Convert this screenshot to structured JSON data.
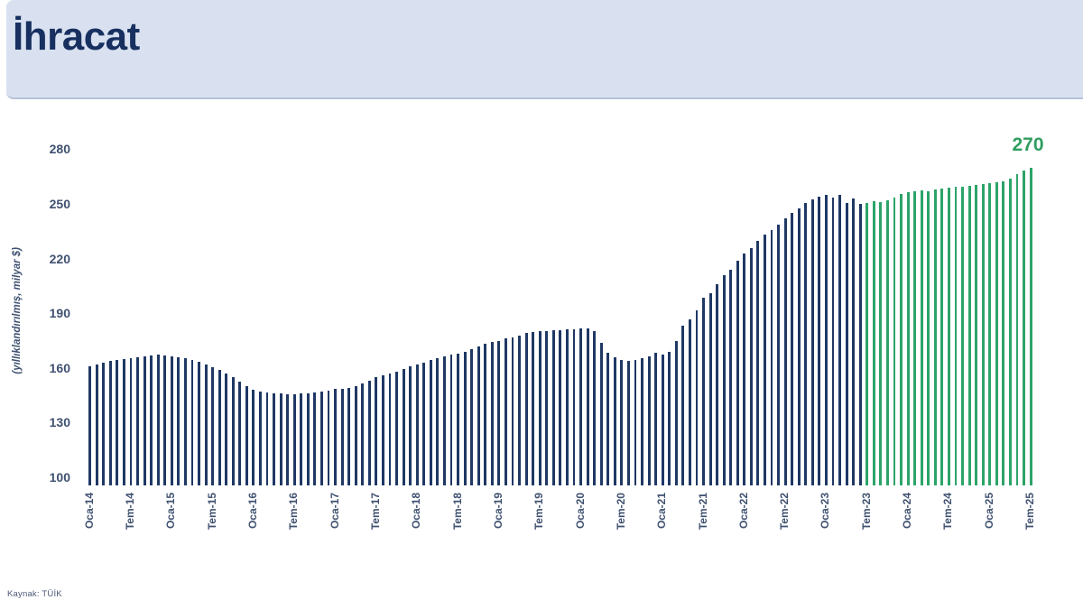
{
  "header": {
    "title": "İhracat"
  },
  "footer": {
    "source": "Kaynak: TÜİK"
  },
  "colors": {
    "page_bg": "#ffffff",
    "header_bg": "#d9e1f1",
    "header_border": "#b7c2d6",
    "title_color": "#17305f",
    "axis_text": "#3f5170",
    "bar_navy": "#1f3864",
    "bar_green": "#2ca469",
    "annotation_color": "#2f9e5f"
  },
  "chart_data": {
    "type": "bar",
    "title": "İhracat",
    "ylabel": "(yıllıklandırılmış, milyar $)",
    "ylim": [
      100,
      280
    ],
    "yticks": [
      280,
      250,
      220,
      190,
      160,
      130,
      100
    ],
    "grid": false,
    "legend": null,
    "x_frequency": "monthly",
    "x_start": "Oca-14",
    "x_end": "Tem-25",
    "n_points": 139,
    "xtick_every": 6,
    "xtick_labels": [
      "Oca-14",
      "Tem-14",
      "Oca-15",
      "Tem-15",
      "Oca-16",
      "Tem-16",
      "Oca-17",
      "Tem-17",
      "Oca-18",
      "Tem-18",
      "Oca-19",
      "Tem-19",
      "Oca-20",
      "Tem-20",
      "Oca-21",
      "Tem-21",
      "Oca-22",
      "Tem-22",
      "Oca-23",
      "Tem-23",
      "Oca-24",
      "Tem-24",
      "Oca-25",
      "Tem-25"
    ],
    "values": [
      161,
      162,
      163,
      164,
      164.5,
      165,
      165.5,
      166,
      166.5,
      167,
      167.5,
      167,
      166.5,
      166,
      165.5,
      164.5,
      163.5,
      162,
      160.5,
      159,
      157,
      155,
      152.5,
      150,
      148,
      147,
      146.5,
      146,
      146,
      145.5,
      145.5,
      146,
      146,
      146.5,
      147,
      147.5,
      148.5,
      148.5,
      149,
      150,
      151.5,
      153,
      155,
      156,
      157,
      158,
      159.5,
      161,
      162,
      163,
      164.5,
      165.5,
      166.5,
      167.5,
      168,
      169,
      170.5,
      172,
      173.5,
      174.5,
      175,
      176,
      176.5,
      177.5,
      179,
      179.5,
      180,
      180,
      180.5,
      180.5,
      181,
      181,
      181.5,
      181.5,
      180,
      174,
      168.5,
      166,
      164.5,
      164,
      164.5,
      165.5,
      166.5,
      168.5,
      167.5,
      169,
      175,
      183,
      186.5,
      191.5,
      198.5,
      201,
      206,
      211,
      214,
      219,
      223,
      225.5,
      229.5,
      233,
      235.5,
      238.5,
      242,
      245,
      247.5,
      250.5,
      252.5,
      254,
      255,
      253.5,
      255,
      250.5,
      253,
      250,
      250.5,
      251.5,
      251,
      252,
      253.5,
      255.5,
      256.5,
      257,
      257.5,
      257,
      258,
      258.5,
      259,
      259.5,
      259.5,
      260,
      260.5,
      261,
      261.5,
      262,
      262.5,
      264,
      266.5,
      268.5,
      270
    ],
    "highlight": {
      "from_index": 114,
      "from_label": "Tem-23",
      "note_color_before": "navy",
      "note_color_after": "green"
    },
    "last_value_label": "270"
  }
}
